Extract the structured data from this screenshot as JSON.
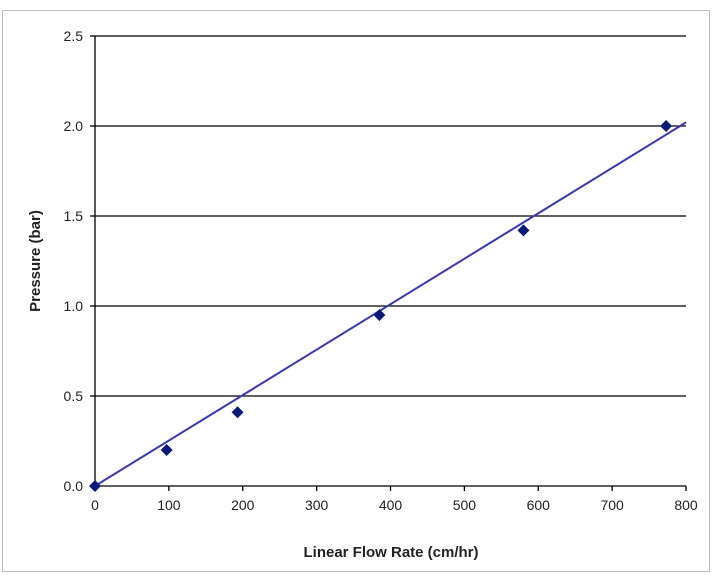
{
  "chart_data": {
    "type": "scatter",
    "title": "",
    "xlabel": "Linear Flow Rate (cm/hr)",
    "ylabel": "Pressure (bar)",
    "xlim": [
      0,
      800
    ],
    "ylim": [
      0,
      2.5
    ],
    "x_ticks": [
      "0",
      "100",
      "200",
      "300",
      "400",
      "500",
      "600",
      "700",
      "800"
    ],
    "y_ticks": [
      "0.0",
      "0.5",
      "1.0",
      "1.5",
      "2.0",
      "2.5"
    ],
    "x_tick_values": [
      0,
      100,
      200,
      300,
      400,
      500,
      600,
      700,
      800
    ],
    "y_tick_values": [
      0,
      0.5,
      1.0,
      1.5,
      2.0,
      2.5
    ],
    "grid": "horizontal",
    "legend": "none",
    "series": [
      {
        "points": [
          {
            "x": 0,
            "y": 0.0
          },
          {
            "x": 97,
            "y": 0.2
          },
          {
            "x": 193,
            "y": 0.41
          },
          {
            "x": 385,
            "y": 0.95
          },
          {
            "x": 580,
            "y": 1.42
          },
          {
            "x": 773,
            "y": 2.0
          }
        ],
        "marker": "diamond",
        "color": "#0a1a78"
      }
    ],
    "trendline": {
      "type": "linear",
      "x": [
        0,
        800
      ],
      "y": [
        0.0,
        2.02
      ],
      "color": "#3a3aa8"
    },
    "colors": {
      "grid": "#000000",
      "axis": "#000000"
    }
  }
}
